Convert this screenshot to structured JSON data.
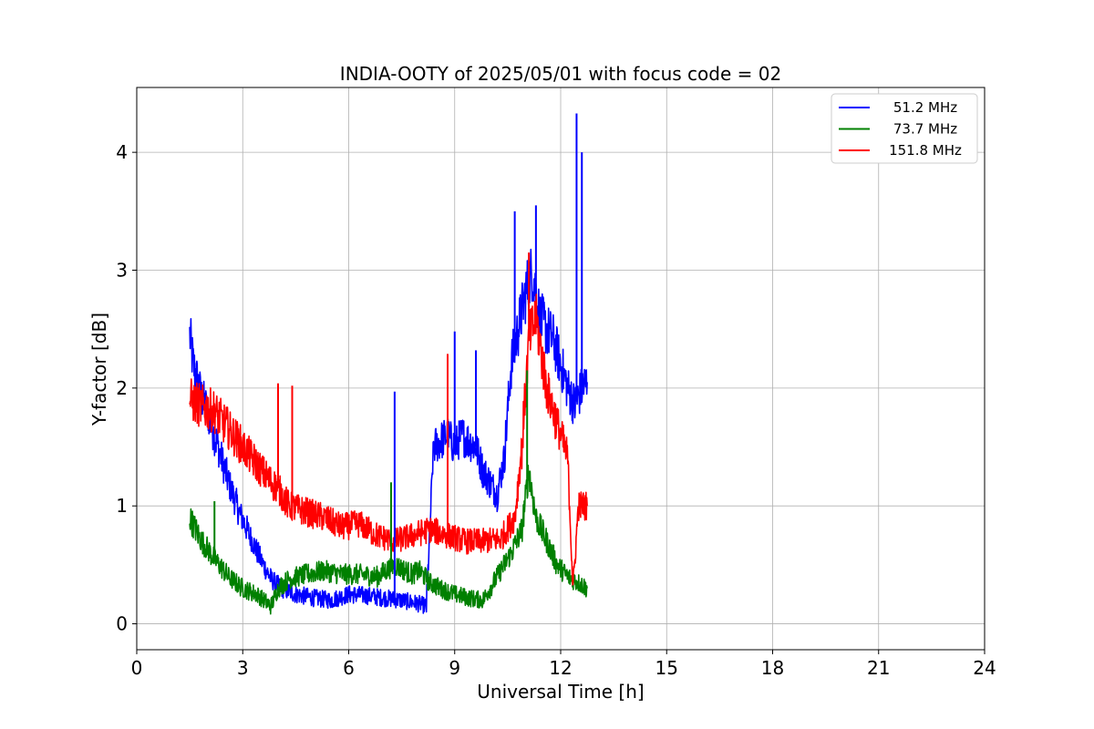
{
  "chart_data": {
    "type": "line",
    "title": "INDIA-OOTY of 2025/05/01 with focus code = 02",
    "xlabel": "Universal Time [h]",
    "ylabel": "Y-factor [dB]",
    "xlim": [
      0,
      24
    ],
    "ylim": [
      -0.22,
      4.55
    ],
    "xticks": [
      0,
      3,
      6,
      9,
      12,
      15,
      18,
      21,
      24
    ],
    "yticks": [
      0,
      1,
      2,
      3,
      4
    ],
    "grid": true,
    "legend_position": "top-right",
    "series": [
      {
        "name": "51.2 MHz",
        "color": "#0000ff",
        "x": [
          1.5,
          1.6,
          1.8,
          2.0,
          2.3,
          2.6,
          2.9,
          3.2,
          3.5,
          3.8,
          4.1,
          4.5,
          5.0,
          5.5,
          6.0,
          6.5,
          7.0,
          7.5,
          8.0,
          8.2,
          8.4,
          8.6,
          8.8,
          9.0,
          9.2,
          9.4,
          9.6,
          9.8,
          10.0,
          10.2,
          10.4,
          10.6,
          10.8,
          11.0,
          11.2,
          11.4,
          11.6,
          11.8,
          12.0,
          12.2,
          12.4,
          12.6,
          12.75
        ],
        "y": [
          2.45,
          2.2,
          1.95,
          1.8,
          1.5,
          1.2,
          0.95,
          0.75,
          0.55,
          0.38,
          0.3,
          0.25,
          0.22,
          0.2,
          0.25,
          0.24,
          0.22,
          0.2,
          0.17,
          0.15,
          1.5,
          1.55,
          1.6,
          1.5,
          1.6,
          1.55,
          1.5,
          1.3,
          1.2,
          1.1,
          1.4,
          2.2,
          2.5,
          2.8,
          3.0,
          2.6,
          2.5,
          2.4,
          2.2,
          2.0,
          1.85,
          2.0,
          2.05
        ]
      },
      {
        "name": "73.7 MHz",
        "color": "#008000",
        "x": [
          1.5,
          1.8,
          2.2,
          2.6,
          3.0,
          3.4,
          3.8,
          4.0,
          4.3,
          4.8,
          5.3,
          5.8,
          6.3,
          6.8,
          7.3,
          7.8,
          8.0,
          8.3,
          8.6,
          9.0,
          9.4,
          9.8,
          10.0,
          10.3,
          10.6,
          10.9,
          11.1,
          11.3,
          11.6,
          11.9,
          12.2,
          12.5,
          12.75
        ],
        "y": [
          0.9,
          0.72,
          0.55,
          0.4,
          0.3,
          0.25,
          0.15,
          0.3,
          0.38,
          0.42,
          0.45,
          0.42,
          0.42,
          0.4,
          0.5,
          0.42,
          0.45,
          0.35,
          0.3,
          0.25,
          0.22,
          0.2,
          0.3,
          0.45,
          0.6,
          0.8,
          1.3,
          0.9,
          0.7,
          0.5,
          0.4,
          0.35,
          0.3
        ]
      },
      {
        "name": "151.8 MHz",
        "color": "#ff0000",
        "x": [
          1.5,
          1.8,
          2.2,
          2.6,
          3.0,
          3.4,
          3.8,
          4.0,
          4.3,
          4.8,
          5.3,
          5.8,
          6.3,
          6.8,
          7.3,
          7.8,
          8.3,
          8.8,
          9.3,
          9.8,
          10.3,
          10.7,
          10.9,
          11.1,
          11.3,
          11.6,
          11.9,
          12.2,
          12.35,
          12.5,
          12.75
        ],
        "y": [
          1.9,
          1.85,
          1.8,
          1.65,
          1.5,
          1.35,
          1.2,
          1.15,
          1.0,
          0.95,
          0.9,
          0.82,
          0.85,
          0.75,
          0.7,
          0.75,
          0.8,
          0.75,
          0.7,
          0.7,
          0.72,
          0.9,
          1.5,
          2.4,
          2.6,
          2.0,
          1.7,
          1.4,
          0.3,
          1.0,
          1.0
        ]
      }
    ],
    "spikes": [
      {
        "series": 0,
        "x": 7.3,
        "y": 1.97
      },
      {
        "series": 0,
        "x": 9.0,
        "y": 2.48
      },
      {
        "series": 0,
        "x": 9.6,
        "y": 2.32
      },
      {
        "series": 0,
        "x": 10.7,
        "y": 3.5
      },
      {
        "series": 0,
        "x": 11.3,
        "y": 3.55
      },
      {
        "series": 0,
        "x": 12.45,
        "y": 4.33
      },
      {
        "series": 0,
        "x": 12.6,
        "y": 4.0
      },
      {
        "series": 1,
        "x": 2.2,
        "y": 1.04
      },
      {
        "series": 1,
        "x": 7.2,
        "y": 1.2
      },
      {
        "series": 1,
        "x": 11.05,
        "y": 2.15
      },
      {
        "series": 2,
        "x": 4.0,
        "y": 2.04
      },
      {
        "series": 2,
        "x": 4.4,
        "y": 2.02
      },
      {
        "series": 2,
        "x": 8.8,
        "y": 2.29
      },
      {
        "series": 2,
        "x": 11.1,
        "y": 3.15
      }
    ]
  }
}
